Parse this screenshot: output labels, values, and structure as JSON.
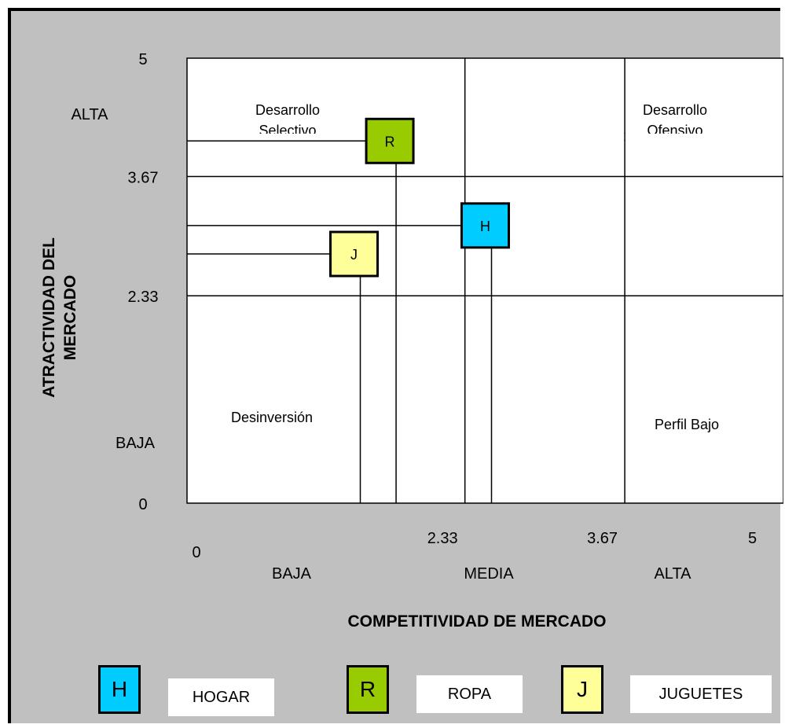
{
  "chart_data": {
    "type": "scatter",
    "title": "",
    "xlabel": "COMPETITIVIDAD DE MERCADO",
    "ylabel": "ATRACTIVIDAD DEL MERCADO",
    "xlim": [
      0,
      5
    ],
    "ylim": [
      0,
      5
    ],
    "grid": true,
    "x_ticks": [
      "0",
      "2.33",
      "3.67",
      "5"
    ],
    "x_tick_values": [
      0,
      2.33,
      3.67,
      5
    ],
    "y_ticks": [
      "0",
      "2.33",
      "3.67",
      "5"
    ],
    "y_tick_values": [
      0,
      2.33,
      3.67,
      5
    ],
    "x_levels": [
      "BAJA",
      "MEDIA",
      "ALTA"
    ],
    "y_levels": [
      "ALTA",
      "BAJA"
    ],
    "quadrants": [
      {
        "name": "Desarrollo Selectivo",
        "line1": "Desarrollo",
        "line2": "Selectivo",
        "position": "top-left"
      },
      {
        "name": "Desarrollo Ofensivo",
        "line1": "Desarrollo",
        "line2": "Ofensivo",
        "position": "top-right"
      },
      {
        "name": "Desinversión",
        "line1": "Desinversión",
        "line2": "",
        "position": "bottom-left"
      },
      {
        "name": "Perfil Bajo",
        "line1": "Perfil Bajo",
        "line2": "",
        "position": "bottom-right"
      }
    ],
    "series": [
      {
        "name": "HOGAR",
        "marker": "H",
        "x": 2.5,
        "y": 3.12,
        "color": "#00ccff"
      },
      {
        "name": "ROPA",
        "marker": "R",
        "x": 1.7,
        "y": 4.07,
        "color": "#99cc00"
      },
      {
        "name": "JUGUETES",
        "marker": "J",
        "x": 1.4,
        "y": 2.8,
        "color": "#ffff99"
      }
    ]
  },
  "legend": [
    {
      "marker": "H",
      "label": "HOGAR",
      "color": "#00ccff"
    },
    {
      "marker": "R",
      "label": "ROPA",
      "color": "#99cc00"
    },
    {
      "marker": "J",
      "label": "JUGUETES",
      "color": "#ffff99"
    }
  ]
}
